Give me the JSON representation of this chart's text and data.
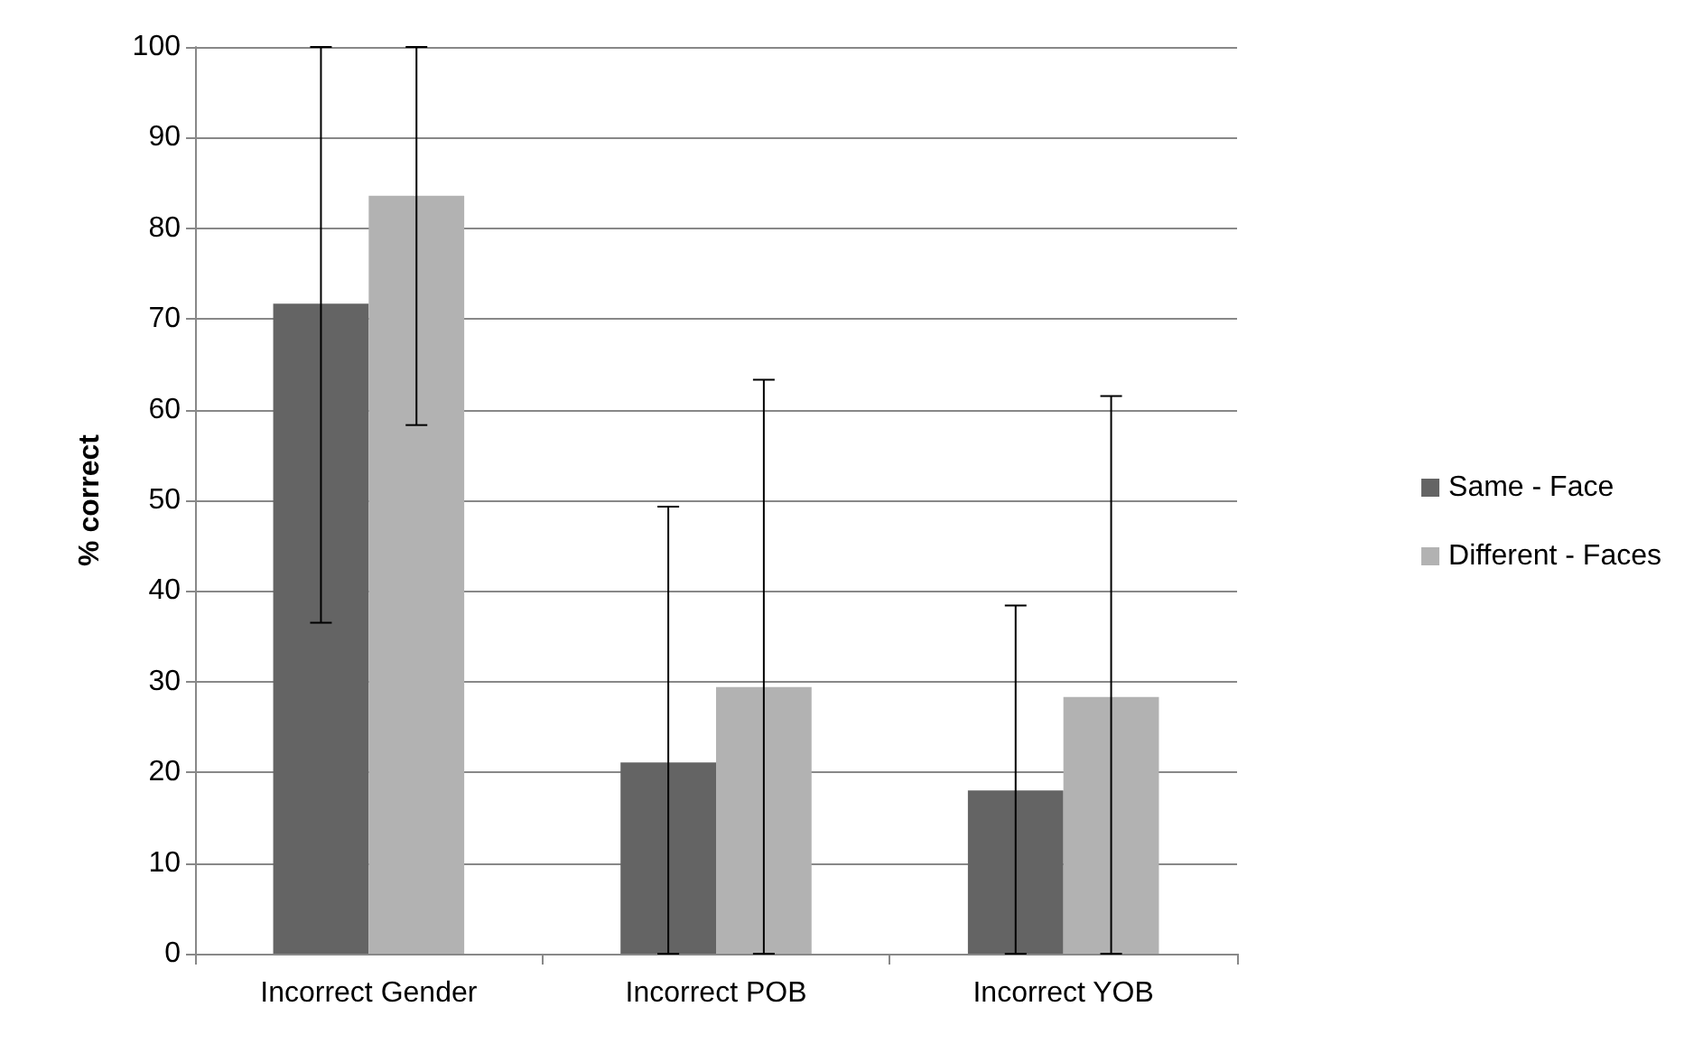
{
  "chart_data": {
    "type": "bar",
    "ylabel": "% correct",
    "categories": [
      "Incorrect Gender",
      "Incorrect POB",
      "Incorrect YOB"
    ],
    "series": [
      {
        "name": "Same - Face",
        "color": "#646464",
        "values": [
          71.7,
          21.1,
          18.0
        ],
        "errors": [
          [
            36.5,
            100
          ],
          [
            0,
            49.3
          ],
          [
            0,
            38.4
          ]
        ]
      },
      {
        "name": "Different - Faces",
        "color": "#b2b2b2",
        "values": [
          83.6,
          29.4,
          28.3
        ],
        "errors": [
          [
            58.3,
            100
          ],
          [
            0,
            63.3
          ],
          [
            0,
            61.5
          ]
        ]
      }
    ],
    "ylim": [
      0,
      100
    ],
    "yticks": [
      0,
      10,
      20,
      30,
      40,
      50,
      60,
      70,
      80,
      90,
      100
    ],
    "grid": "y",
    "legend": "right"
  }
}
